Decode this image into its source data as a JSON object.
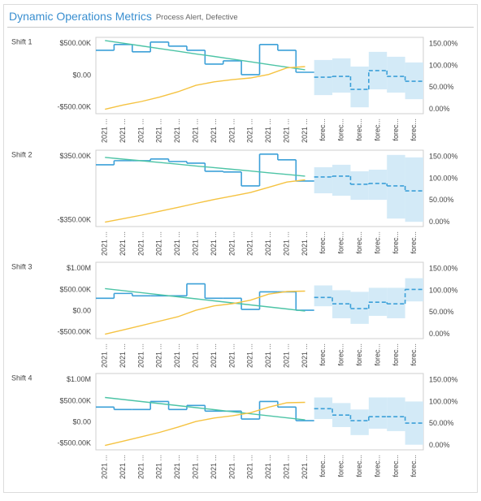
{
  "header": {
    "title": "Dynamic Operations Metrics",
    "subtitle": "Process Alert, Defective"
  },
  "chart_data": [
    {
      "type": "line",
      "title": "Shift 1",
      "categories": [
        "2021 ...",
        "2021 ...",
        "2021 ...",
        "2021 ...",
        "2021 ...",
        "2021 ...",
        "2021 ...",
        "2021 ...",
        "2021 ...",
        "2021 ...",
        "2021 ...",
        "2021 ...",
        "forec...",
        "forec...",
        "forec...",
        "forec...",
        "forec...",
        "forec..."
      ],
      "ylim": [
        -600000,
        600000
      ],
      "yticks": [
        {
          "value": 500000,
          "label": "$500.00K"
        },
        {
          "value": 0,
          "label": "$0.00"
        },
        {
          "value": -500000,
          "label": "-$500.00K"
        }
      ],
      "y2lim": [
        -10,
        165
      ],
      "y2ticks": [
        {
          "value": 150,
          "label": "150.00%"
        },
        {
          "value": 100,
          "label": "100.00%"
        },
        {
          "value": 50,
          "label": "50.00%"
        },
        {
          "value": 0,
          "label": "0.00%"
        }
      ],
      "band": {
        "color": "#d3eaf7",
        "lower": [
          null,
          null,
          null,
          null,
          null,
          null,
          null,
          null,
          null,
          null,
          null,
          null,
          -308000,
          -269000,
          -500000,
          -218000,
          -269000,
          -372000
        ],
        "upper": [
          null,
          null,
          null,
          null,
          null,
          null,
          null,
          null,
          null,
          null,
          null,
          null,
          244000,
          270000,
          141000,
          372000,
          295000,
          205000
        ]
      },
      "series": [
        {
          "color": "#3ca0d8",
          "step": true,
          "values": [
            397000,
            487000,
            372000,
            526000,
            462000,
            397000,
            180000,
            231000,
            13000,
            487000,
            397000,
            51000,
            null,
            null,
            null,
            null,
            null,
            null
          ]
        },
        {
          "color": "#3ca0d8",
          "step": true,
          "dash": true,
          "values": [
            null,
            null,
            null,
            null,
            null,
            null,
            null,
            null,
            null,
            null,
            null,
            null,
            -26000,
            -13000,
            -218000,
            77000,
            -13000,
            -90000
          ]
        },
        {
          "color": "#4dc4a6",
          "values": [
            550000,
            508000,
            466000,
            424000,
            382000,
            340000,
            300000,
            258000,
            216000,
            174000,
            132000,
            90000,
            null,
            null,
            null,
            null,
            null,
            null
          ]
        },
        {
          "color": "#f5c342",
          "axis": "y2",
          "values": [
            0,
            10,
            18,
            28,
            40,
            55,
            63,
            68,
            72,
            80,
            95,
            98,
            null,
            null,
            null,
            null,
            null,
            null
          ]
        }
      ]
    },
    {
      "type": "line",
      "title": "Shift 2",
      "categories": [
        "2021 ...",
        "2021 ...",
        "2021 ...",
        "2021 ...",
        "2021 ...",
        "2021 ...",
        "2021 ...",
        "2021 ...",
        "2021 ...",
        "2021 ...",
        "2021 ...",
        "2021 ...",
        "forec...",
        "forec...",
        "forec...",
        "forec...",
        "forec...",
        "forec..."
      ],
      "ylim": [
        -420000,
        420000
      ],
      "yticks": [
        {
          "value": 350000,
          "label": "$350.00K"
        },
        {
          "value": -350000,
          "label": "-$350.00K"
        }
      ],
      "y2lim": [
        -10,
        165
      ],
      "y2ticks": [
        {
          "value": 150,
          "label": "150.00%"
        },
        {
          "value": 100,
          "label": "100.00%"
        },
        {
          "value": 50,
          "label": "50.00%"
        },
        {
          "value": 0,
          "label": "0.00%"
        }
      ],
      "band": {
        "color": "#d3eaf7",
        "lower": [
          null,
          null,
          null,
          null,
          null,
          null,
          null,
          null,
          null,
          null,
          null,
          null,
          -54000,
          -81000,
          -126000,
          -126000,
          -332000,
          -368000
        ],
        "upper": [
          null,
          null,
          null,
          null,
          null,
          null,
          null,
          null,
          null,
          null,
          null,
          null,
          233000,
          260000,
          188000,
          206000,
          368000,
          341000
        ]
      },
      "series": [
        {
          "color": "#3ca0d8",
          "step": true,
          "values": [
            260000,
            305000,
            305000,
            323000,
            296000,
            278000,
            188000,
            180000,
            27000,
            377000,
            314000,
            81000,
            null,
            null,
            null,
            null,
            null,
            null
          ]
        },
        {
          "color": "#3ca0d8",
          "step": true,
          "dash": true,
          "values": [
            null,
            null,
            null,
            null,
            null,
            null,
            null,
            null,
            null,
            null,
            null,
            null,
            126000,
            135000,
            45000,
            54000,
            27000,
            -27000
          ]
        },
        {
          "color": "#4dc4a6",
          "values": [
            341000,
            322000,
            304000,
            285000,
            266000,
            247000,
            229000,
            210000,
            191000,
            172000,
            154000,
            135000,
            null,
            null,
            null,
            null,
            null,
            null
          ]
        },
        {
          "color": "#f5c342",
          "axis": "y2",
          "values": [
            0,
            8,
            16,
            25,
            34,
            43,
            52,
            60,
            68,
            80,
            92,
            97,
            null,
            null,
            null,
            null,
            null,
            null
          ]
        }
      ]
    },
    {
      "type": "line",
      "title": "Shift 3",
      "categories": [
        "2021 ...",
        "2021 ...",
        "2021 ...",
        "2021 ...",
        "2021 ...",
        "2021 ...",
        "2021 ...",
        "2021 ...",
        "2021 ...",
        "2021 ...",
        "2021 ...",
        "2021 ...",
        "forec...",
        "forec...",
        "forec...",
        "forec...",
        "forec...",
        "forec..."
      ],
      "ylim": [
        -650000,
        1150000
      ],
      "yticks": [
        {
          "value": 1000000,
          "label": "$1.00M"
        },
        {
          "value": 500000,
          "label": "$500.00K"
        },
        {
          "value": 0,
          "label": "$0.00"
        },
        {
          "value": -500000,
          "label": "-$500.00K"
        }
      ],
      "y2lim": [
        -10,
        165
      ],
      "y2ticks": [
        {
          "value": 150,
          "label": "150.00%"
        },
        {
          "value": 100,
          "label": "100.00%"
        },
        {
          "value": 50,
          "label": "50.00%"
        },
        {
          "value": 0,
          "label": "0.00%"
        }
      ],
      "band": {
        "color": "#d3eaf7",
        "lower": [
          null,
          null,
          null,
          null,
          null,
          null,
          null,
          null,
          null,
          null,
          null,
          null,
          113000,
          -170000,
          -302000,
          -113000,
          -170000,
          227000
        ],
        "upper": [
          null,
          null,
          null,
          null,
          null,
          null,
          null,
          null,
          null,
          null,
          null,
          null,
          604000,
          491000,
          453000,
          548000,
          548000,
          774000
        ]
      },
      "series": [
        {
          "color": "#3ca0d8",
          "step": true,
          "values": [
            302000,
            415000,
            359000,
            359000,
            359000,
            642000,
            302000,
            302000,
            38000,
            453000,
            453000,
            19000,
            null,
            null,
            null,
            null,
            null,
            null
          ]
        },
        {
          "color": "#3ca0d8",
          "step": true,
          "dash": true,
          "values": [
            null,
            null,
            null,
            null,
            null,
            null,
            null,
            null,
            null,
            null,
            null,
            null,
            321000,
            170000,
            57000,
            208000,
            170000,
            510000
          ]
        },
        {
          "color": "#4dc4a6",
          "values": [
            529000,
            481000,
            433000,
            385000,
            337000,
            289000,
            240000,
            192000,
            144000,
            96000,
            48000,
            0,
            null,
            null,
            null,
            null,
            null,
            null
          ]
        },
        {
          "color": "#f5c342",
          "axis": "y2",
          "values": [
            0,
            10,
            20,
            30,
            40,
            55,
            65,
            70,
            78,
            92,
            98,
            99,
            null,
            null,
            null,
            null,
            null,
            null
          ]
        }
      ]
    },
    {
      "type": "line",
      "title": "Shift 4",
      "categories": [
        "2021 ...",
        "2021 ...",
        "2021 ...",
        "2021 ...",
        "2021 ...",
        "2021 ...",
        "2021 ...",
        "2021 ...",
        "2021 ...",
        "2021 ...",
        "2021 ...",
        "2021 ...",
        "forec...",
        "forec...",
        "forec...",
        "forec...",
        "forec...",
        "forec..."
      ],
      "ylim": [
        -650000,
        1150000
      ],
      "yticks": [
        {
          "value": 1000000,
          "label": "$1.00M"
        },
        {
          "value": 500000,
          "label": "$500.00K"
        },
        {
          "value": 0,
          "label": "$0.00"
        },
        {
          "value": -500000,
          "label": "-$500.00K"
        }
      ],
      "y2lim": [
        -10,
        165
      ],
      "y2ticks": [
        {
          "value": 150,
          "label": "150.00%"
        },
        {
          "value": 100,
          "label": "100.00%"
        },
        {
          "value": 50,
          "label": "50.00%"
        },
        {
          "value": 0,
          "label": "0.00%"
        }
      ],
      "band": {
        "color": "#d3eaf7",
        "lower": [
          null,
          null,
          null,
          null,
          null,
          null,
          null,
          null,
          null,
          null,
          null,
          null,
          76000,
          -113000,
          -302000,
          -151000,
          -208000,
          -529000
        ],
        "upper": [
          null,
          null,
          null,
          null,
          null,
          null,
          null,
          null,
          null,
          null,
          null,
          null,
          586000,
          453000,
          302000,
          586000,
          586000,
          491000
        ]
      },
      "series": [
        {
          "color": "#3ca0d8",
          "step": true,
          "values": [
            359000,
            302000,
            302000,
            491000,
            302000,
            397000,
            264000,
            264000,
            76000,
            491000,
            359000,
            38000,
            null,
            null,
            null,
            null,
            null,
            null
          ]
        },
        {
          "color": "#3ca0d8",
          "step": true,
          "dash": true,
          "values": [
            null,
            null,
            null,
            null,
            null,
            null,
            null,
            null,
            null,
            null,
            null,
            null,
            321000,
            170000,
            38000,
            132000,
            132000,
            -19000
          ]
        },
        {
          "color": "#4dc4a6",
          "values": [
            586000,
            538000,
            490000,
            442000,
            394000,
            346000,
            298000,
            249000,
            201000,
            153000,
            105000,
            57000,
            null,
            null,
            null,
            null,
            null,
            null
          ]
        },
        {
          "color": "#f5c342",
          "axis": "y2",
          "values": [
            0,
            10,
            20,
            30,
            42,
            55,
            63,
            68,
            75,
            88,
            98,
            99,
            null,
            null,
            null,
            null,
            null,
            null
          ]
        }
      ]
    }
  ]
}
